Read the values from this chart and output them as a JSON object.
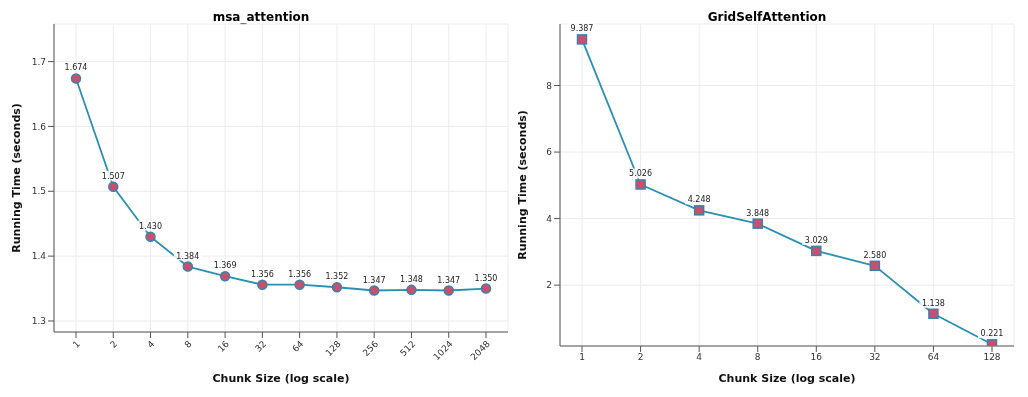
{
  "chart_data": [
    {
      "type": "line",
      "title": "msa_attention",
      "xlabel": "Chunk Size (log scale)",
      "ylabel": "Running Time (seconds)",
      "categories": [
        "1",
        "2",
        "4",
        "8",
        "16",
        "32",
        "64",
        "128",
        "256",
        "512",
        "1024",
        "2048"
      ],
      "series": [
        {
          "color": "#2a8fb5",
          "values": [
            1.674,
            1.507,
            1.43,
            1.384,
            1.369,
            1.356,
            1.356,
            1.352,
            1.347,
            1.348,
            1.347,
            1.35
          ],
          "value_labels": [
            "1.674",
            "1.507",
            "1.430",
            "1.384",
            "1.369",
            "1.356",
            "1.356",
            "1.352",
            "1.347",
            "1.348",
            "1.347",
            "1.350"
          ]
        }
      ],
      "ylim": [
        1.283,
        1.758
      ],
      "yticks": [
        1.3,
        1.4,
        1.5,
        1.6,
        1.7
      ],
      "grid": true,
      "marker": "circle"
    },
    {
      "type": "line",
      "title": "GridSelfAttention",
      "xlabel": "Chunk Size (log scale)",
      "ylabel": "Running Time (seconds)",
      "categories": [
        "1",
        "2",
        "4",
        "8",
        "16",
        "32",
        "64",
        "128"
      ],
      "series": [
        {
          "color": "#2a8fb5",
          "values": [
            9.387,
            5.026,
            4.248,
            3.848,
            3.029,
            2.58,
            1.138,
            0.221
          ],
          "value_labels": [
            "9.387",
            "5.026",
            "4.248",
            "3.848",
            "3.029",
            "2.580",
            "1.138",
            "0.221"
          ]
        }
      ],
      "ylim": [
        0.17,
        9.85
      ],
      "yticks": [
        2,
        4,
        6,
        8
      ],
      "grid": true,
      "marker": "square"
    }
  ]
}
